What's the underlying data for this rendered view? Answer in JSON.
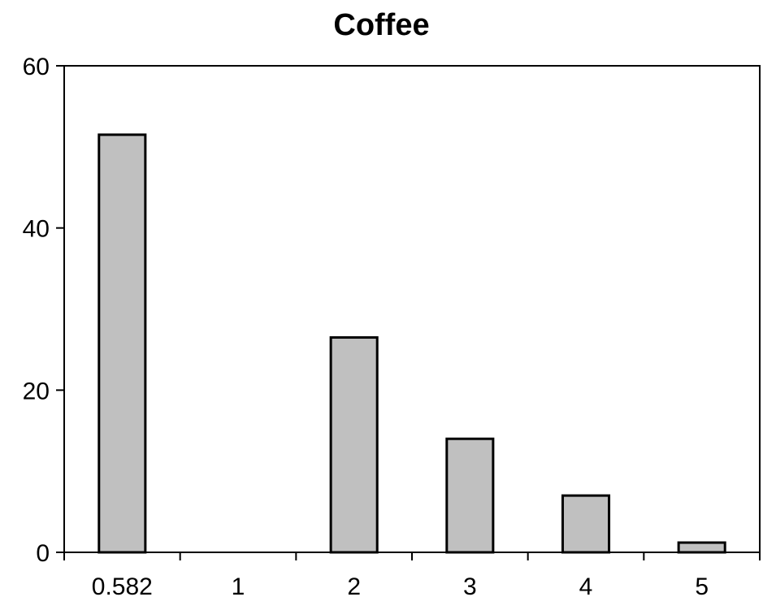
{
  "chart_data": {
    "type": "bar",
    "title": "Coffee",
    "xlabel": "",
    "ylabel": "",
    "categories": [
      "0.582",
      "1",
      "2",
      "3",
      "4",
      "5"
    ],
    "values": [
      51.5,
      0,
      26.5,
      14,
      7,
      1.2
    ],
    "ylim": [
      0,
      60
    ],
    "yticks": [
      "0",
      "20",
      "40",
      "60"
    ],
    "grid": false,
    "legend": "none",
    "bar_color": "#c0c0c0",
    "bar_edge_color": "#000000"
  }
}
